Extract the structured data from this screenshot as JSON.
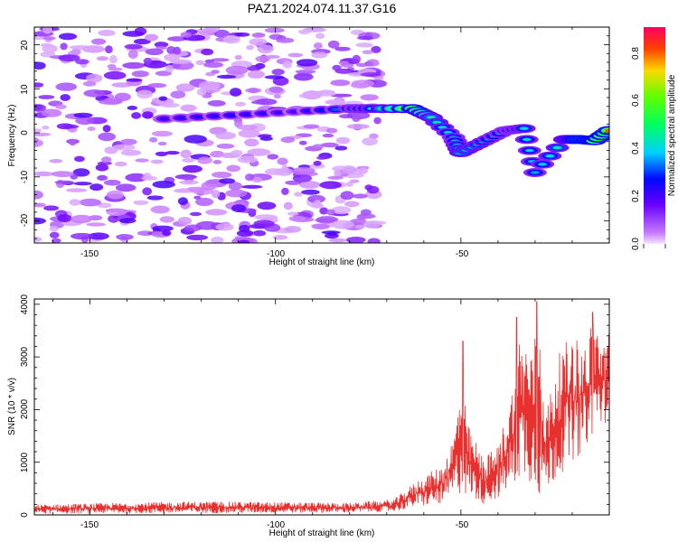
{
  "title": "PAZ1.2024.074.11.37.G16",
  "chart_data": [
    {
      "type": "heatmap",
      "xlabel": "Height of straight line (km)",
      "ylabel": "Frequency (Hz)",
      "xlim": [
        -165,
        -10
      ],
      "ylim": [
        -25,
        24
      ],
      "xticks": [
        "-150",
        "-100",
        "-50"
      ],
      "yticks": [
        "20",
        "10",
        "0",
        "-10",
        "-20"
      ],
      "colorbar": {
        "label": "Normalized spectral amplitude",
        "range": [
          0,
          0.9
        ],
        "ticks": [
          "0.0",
          "0.2",
          "0.4",
          "0.6",
          "0.8"
        ],
        "colormap": "gist_rainbow_r (violet to red)"
      },
      "noise_region": {
        "x_from": -165,
        "x_to": -72,
        "level": "low (0.05-0.2)"
      },
      "signal_track": [
        {
          "x": -130,
          "freq": 3.2,
          "amp": 0.22
        },
        {
          "x": -112,
          "freq": 4.0,
          "amp": 0.25
        },
        {
          "x": -95,
          "freq": 4.8,
          "amp": 0.2
        },
        {
          "x": -80,
          "freq": 5.5,
          "amp": 0.35
        },
        {
          "x": -74,
          "freq": 5.5,
          "amp": 0.4
        },
        {
          "x": -63,
          "freq": 5.5,
          "amp": 0.7
        },
        {
          "x": -58,
          "freq": 3.5,
          "amp": 0.45
        },
        {
          "x": -52,
          "freq": -1.0,
          "amp": 0.35
        },
        {
          "x": -50,
          "freq": -4.5,
          "amp": 0.45
        },
        {
          "x": -44,
          "freq": -2.0,
          "amp": 0.4
        },
        {
          "x": -38,
          "freq": 0.5,
          "amp": 0.35
        },
        {
          "x": -33,
          "freq": 1.0,
          "amp": 0.4
        },
        {
          "x": -30,
          "freq": -9.0,
          "amp": 0.35
        },
        {
          "x": -22,
          "freq": -1.5,
          "amp": 0.45
        },
        {
          "x": -18,
          "freq": -1.5,
          "amp": 0.8
        },
        {
          "x": -14,
          "freq": -1.8,
          "amp": 0.75
        },
        {
          "x": -10,
          "freq": 0.5,
          "amp": 0.8
        }
      ]
    },
    {
      "type": "line",
      "xlabel": "Height of straight line (km)",
      "ylabel": "SNR (10 * v/v)",
      "xlim": [
        -165,
        -10
      ],
      "ylim": [
        0,
        4100
      ],
      "xticks": [
        "-150",
        "-100",
        "-50"
      ],
      "yticks": [
        "0",
        "1000",
        "2000",
        "3000",
        "4000"
      ],
      "color": "#e8302f",
      "envelope": [
        {
          "x": -165,
          "low": 20,
          "high": 200
        },
        {
          "x": -120,
          "low": 30,
          "high": 260
        },
        {
          "x": -80,
          "low": 40,
          "high": 230
        },
        {
          "x": -68,
          "low": 60,
          "high": 300
        },
        {
          "x": -62,
          "low": 150,
          "high": 650
        },
        {
          "x": -55,
          "low": 200,
          "high": 950
        },
        {
          "x": -52,
          "low": 300,
          "high": 1500
        },
        {
          "x": -50,
          "low": 400,
          "high": 2600
        },
        {
          "x": -48,
          "low": 350,
          "high": 1700
        },
        {
          "x": -44,
          "low": 200,
          "high": 1100
        },
        {
          "x": -40,
          "low": 300,
          "high": 1300
        },
        {
          "x": -36,
          "low": 500,
          "high": 2500
        },
        {
          "x": -34,
          "low": 700,
          "high": 3600
        },
        {
          "x": -31,
          "low": 600,
          "high": 3100
        },
        {
          "x": -29,
          "low": 300,
          "high": 3800
        },
        {
          "x": -27,
          "low": 400,
          "high": 2000
        },
        {
          "x": -24,
          "low": 700,
          "high": 3000
        },
        {
          "x": -20,
          "low": 1000,
          "high": 3500
        },
        {
          "x": -17,
          "low": 1200,
          "high": 3200
        },
        {
          "x": -14,
          "low": 1600,
          "high": 3800
        },
        {
          "x": -12,
          "low": 1700,
          "high": 3300
        },
        {
          "x": -10,
          "low": 1800,
          "high": 3500
        }
      ],
      "spikes": [
        {
          "x": -49.5,
          "y": 3300
        },
        {
          "x": -35,
          "y": 3750
        },
        {
          "x": -29.5,
          "y": 4050
        },
        {
          "x": -14.5,
          "y": 3850
        }
      ]
    }
  ]
}
